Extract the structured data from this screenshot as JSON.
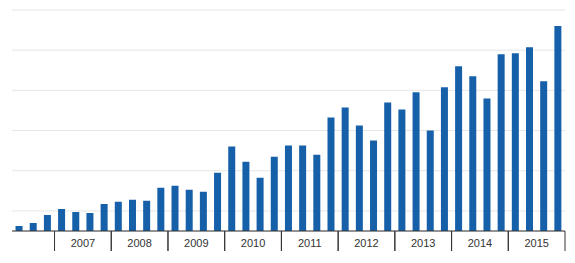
{
  "chart_data": {
    "type": "bar",
    "categories": [
      null,
      null,
      null,
      null,
      "2007",
      null,
      null,
      null,
      "2008",
      null,
      null,
      null,
      "2009",
      null,
      null,
      null,
      "2010",
      null,
      null,
      null,
      "2011",
      null,
      null,
      null,
      "2012",
      null,
      null,
      null,
      "2013",
      null,
      null,
      null,
      "2014",
      null,
      null,
      null,
      "2015",
      null,
      null
    ],
    "values": [
      5,
      8,
      16,
      22,
      19,
      18,
      27,
      29,
      31,
      30,
      43,
      45,
      41,
      39,
      58,
      84,
      69,
      53,
      74,
      85,
      85,
      76,
      113,
      123,
      105,
      90,
      128,
      121,
      138,
      100,
      143,
      164,
      154,
      132,
      176,
      177,
      183,
      149,
      204
    ],
    "color": "#1560a8",
    "ylim": [
      0,
      220
    ],
    "yticks": [
      0,
      20,
      40,
      60,
      80,
      100,
      120,
      140,
      160,
      180,
      200,
      220
    ],
    "grid": true,
    "tick_labels": "x"
  }
}
